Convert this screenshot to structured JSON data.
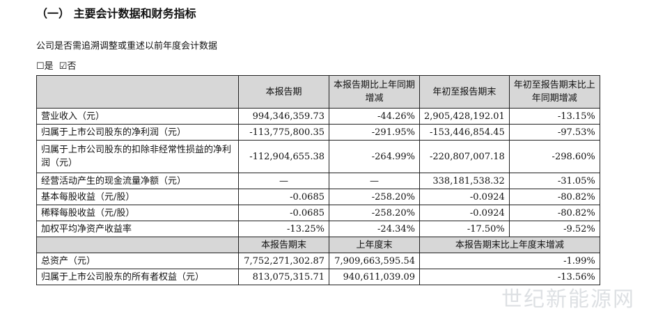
{
  "heading": "（一）  主要会计数据和财务指标",
  "question": "公司是否需追溯调整或重述以前年度会计数据",
  "options": {
    "yes": "☐是",
    "no": "☑否"
  },
  "table1": {
    "headers": [
      "",
      "本报告期",
      "本报告期比上年同期增减",
      "年初至报告期末",
      "年初至报告期末比上年同期增减"
    ],
    "rows": [
      [
        "营业收入（元）",
        "994,346,359.73",
        "-44.26%",
        "2,905,428,192.01",
        "-13.15%"
      ],
      [
        "归属于上市公司股东的净利润（元）",
        "-113,775,800.35",
        "-291.95%",
        "-153,446,854.45",
        "-97.53%"
      ],
      [
        "归属于上市公司股东的扣除非经常性损益的净利润（元）",
        "-112,904,655.38",
        "-264.99%",
        "-220,807,007.18",
        "-298.60%"
      ],
      [
        "经营活动产生的现金流量净额（元）",
        "—",
        "—",
        "338,181,538.32",
        "-31.05%"
      ],
      [
        "基本每股收益（元/股）",
        "-0.0685",
        "-258.20%",
        "-0.0924",
        "-80.82%"
      ],
      [
        "稀释每股收益（元/股）",
        "-0.0685",
        "-258.20%",
        "-0.0924",
        "-80.82%"
      ],
      [
        "加权平均净资产收益率",
        "-13.25%",
        "-24.34%",
        "-17.50%",
        "-9.52%"
      ]
    ]
  },
  "table2": {
    "headers": [
      "",
      "本报告期末",
      "上年度末",
      "本报告期末比上年度末增减"
    ],
    "rows": [
      [
        "总资产（元）",
        "7,752,271,302.87",
        "7,909,663,595.54",
        "-1.99%"
      ],
      [
        "归属于上市公司股东的所有者权益（元）",
        "813,075,315.71",
        "940,611,039.09",
        "-13.56%"
      ]
    ]
  },
  "watermark": "世纪新能源网"
}
